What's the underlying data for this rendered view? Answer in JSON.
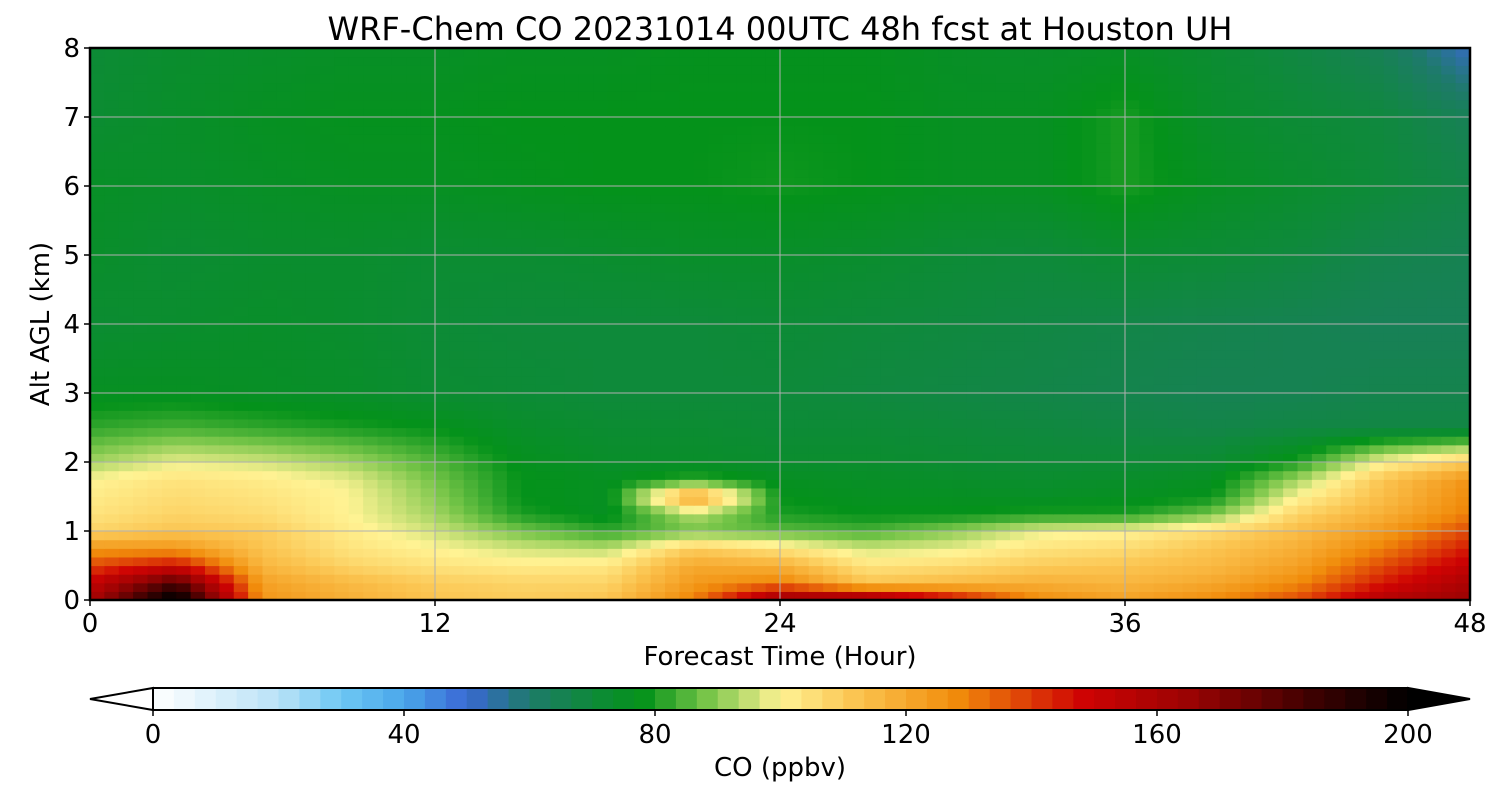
{
  "chart_data": {
    "type": "heatmap",
    "title": "WRF-Chem CO  20231014 00UTC 48h fcst at Houston UH",
    "xlabel": "Forecast Time (Hour)",
    "ylabel": "Alt AGL (km)",
    "xlim": [
      0,
      48
    ],
    "ylim": [
      0,
      8
    ],
    "xticks": [
      0,
      12,
      24,
      36,
      48
    ],
    "yticks": [
      0,
      1,
      2,
      3,
      4,
      5,
      6,
      7,
      8
    ],
    "grid": true,
    "x": [
      0,
      3,
      6,
      9,
      12,
      15,
      18,
      21,
      24,
      27,
      30,
      33,
      36,
      39,
      42,
      45,
      48
    ],
    "y": [
      0,
      0.25,
      0.5,
      0.75,
      1,
      1.25,
      1.5,
      1.75,
      2,
      2.5,
      3,
      4,
      5,
      6,
      7,
      8
    ],
    "z": [
      [
        160,
        205,
        125,
        118,
        112,
        110,
        112,
        130,
        168,
        170,
        150,
        128,
        122,
        128,
        138,
        158,
        165
      ],
      [
        152,
        182,
        122,
        115,
        110,
        108,
        108,
        124,
        130,
        112,
        115,
        118,
        116,
        120,
        128,
        145,
        160
      ],
      [
        138,
        148,
        116,
        108,
        104,
        102,
        103,
        120,
        118,
        104,
        106,
        110,
        112,
        115,
        122,
        138,
        152
      ],
      [
        125,
        125,
        112,
        104,
        100,
        96,
        94,
        110,
        104,
        96,
        98,
        104,
        106,
        112,
        118,
        130,
        145
      ],
      [
        108,
        112,
        110,
        102,
        96,
        88,
        82,
        88,
        86,
        84,
        90,
        98,
        100,
        106,
        114,
        124,
        138
      ],
      [
        104,
        108,
        106,
        100,
        92,
        80,
        76,
        94,
        80,
        78,
        78,
        80,
        80,
        88,
        108,
        118,
        130
      ],
      [
        102,
        106,
        104,
        100,
        90,
        78,
        76,
        124,
        78,
        76,
        76,
        75,
        76,
        78,
        100,
        114,
        128
      ],
      [
        100,
        104,
        102,
        98,
        88,
        78,
        76,
        82,
        76,
        75,
        74,
        73,
        74,
        76,
        92,
        112,
        126
      ],
      [
        92,
        98,
        96,
        92,
        85,
        77,
        74,
        74,
        73,
        73,
        72,
        71,
        71,
        72,
        80,
        100,
        110
      ],
      [
        82,
        84,
        82,
        80,
        78,
        74,
        72,
        72,
        71,
        71,
        70,
        69,
        68,
        67,
        68,
        68,
        68
      ],
      [
        76,
        76,
        75,
        74,
        72,
        71,
        70,
        70,
        70,
        69,
        68,
        67,
        66,
        65,
        65,
        66,
        66
      ],
      [
        72,
        73,
        74,
        73,
        71,
        70,
        70,
        70,
        71,
        70,
        69,
        68,
        67,
        66,
        65,
        64,
        64
      ],
      [
        74,
        72,
        73,
        73,
        72,
        72,
        73,
        74,
        74,
        73,
        71,
        70,
        72,
        71,
        69,
        66,
        65
      ],
      [
        75,
        74,
        75,
        76,
        76,
        77,
        78,
        78,
        79,
        78,
        76,
        76,
        80,
        76,
        73,
        70,
        67
      ],
      [
        72,
        74,
        76,
        77,
        77,
        78,
        78,
        78,
        78,
        78,
        76,
        76,
        80,
        74,
        71,
        69,
        64
      ],
      [
        71,
        73,
        74,
        75,
        75,
        76,
        76,
        77,
        77,
        77,
        75,
        74,
        75,
        72,
        68,
        64,
        52
      ]
    ],
    "colorbar": {
      "label": "CO  (ppbv)",
      "min": 0,
      "max": 200,
      "ticks": [
        0,
        40,
        80,
        120,
        160,
        200
      ],
      "extend": "both",
      "stops": [
        {
          "v": 0,
          "c": "#ffffff"
        },
        {
          "v": 20,
          "c": "#b9e2f7"
        },
        {
          "v": 30,
          "c": "#6ec8f3"
        },
        {
          "v": 40,
          "c": "#4aa6ea"
        },
        {
          "v": 50,
          "c": "#3a68d4"
        },
        {
          "v": 60,
          "c": "#1e7a6a"
        },
        {
          "v": 70,
          "c": "#0e8a3a"
        },
        {
          "v": 78,
          "c": "#04921a"
        },
        {
          "v": 88,
          "c": "#74c447"
        },
        {
          "v": 100,
          "c": "#fff394"
        },
        {
          "v": 112,
          "c": "#fbc450"
        },
        {
          "v": 128,
          "c": "#f18c0b"
        },
        {
          "v": 148,
          "c": "#cf0303"
        },
        {
          "v": 165,
          "c": "#9b0303"
        },
        {
          "v": 185,
          "c": "#3c0101"
        },
        {
          "v": 200,
          "c": "#000000"
        }
      ]
    }
  }
}
